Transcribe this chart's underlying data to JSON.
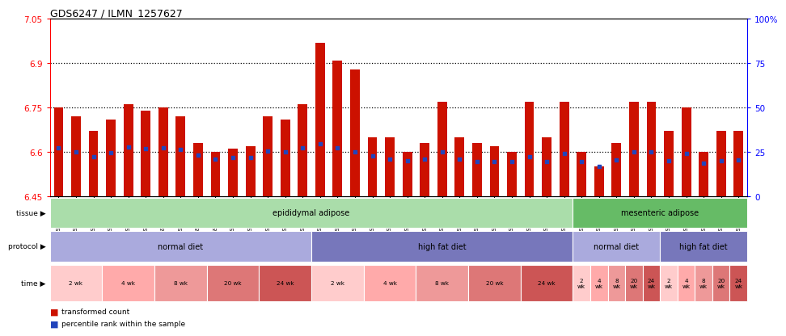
{
  "title": "GDS6247 / ILMN_1257627",
  "samples": [
    "GSM971546",
    "GSM971547",
    "GSM971548",
    "GSM971549",
    "GSM971550",
    "GSM971551",
    "GSM971552",
    "GSM971553",
    "GSM971554",
    "GSM971555",
    "GSM971556",
    "GSM971557",
    "GSM971558",
    "GSM971559",
    "GSM971560",
    "GSM971561",
    "GSM971562",
    "GSM971563",
    "GSM971564",
    "GSM971565",
    "GSM971566",
    "GSM971567",
    "GSM971568",
    "GSM971569",
    "GSM971570",
    "GSM971571",
    "GSM971572",
    "GSM971573",
    "GSM971574",
    "GSM971575",
    "GSM971576",
    "GSM971577",
    "GSM971578",
    "GSM971579",
    "GSM971580",
    "GSM971581",
    "GSM971582",
    "GSM971583",
    "GSM971584",
    "GSM971585"
  ],
  "transformed_count": [
    6.75,
    6.72,
    6.67,
    6.71,
    6.76,
    6.74,
    6.75,
    6.72,
    6.63,
    6.6,
    6.61,
    6.62,
    6.72,
    6.71,
    6.76,
    6.97,
    6.91,
    6.88,
    6.65,
    6.65,
    6.6,
    6.63,
    6.77,
    6.65,
    6.63,
    6.62,
    6.6,
    6.77,
    6.65,
    6.77,
    6.6,
    6.55,
    6.63,
    6.77,
    6.77,
    6.67,
    6.75,
    6.6,
    6.67,
    6.67
  ],
  "blue_dot_y": [
    6.615,
    6.6,
    6.584,
    6.596,
    6.617,
    6.612,
    6.615,
    6.609,
    6.589,
    6.576,
    6.58,
    6.58,
    6.604,
    6.6,
    6.614,
    6.628,
    6.614,
    6.601,
    6.586,
    6.576,
    6.571,
    6.576,
    6.6,
    6.576,
    6.566,
    6.566,
    6.566,
    6.583,
    6.568,
    6.594,
    6.566,
    6.552,
    6.572,
    6.6,
    6.6,
    6.571,
    6.594,
    6.561,
    6.571,
    6.573
  ],
  "ymin": 6.45,
  "ymax": 7.05,
  "yticks": [
    6.45,
    6.6,
    6.75,
    6.9,
    7.05
  ],
  "ytick_labels": [
    "6.45",
    "6.6",
    "6.75",
    "6.9",
    "7.05"
  ],
  "hlines": [
    6.6,
    6.75,
    6.9
  ],
  "y2ticks": [
    0.0,
    0.25,
    0.5,
    0.75,
    1.0
  ],
  "y2tick_labels": [
    "0",
    "25",
    "50",
    "75",
    "100%"
  ],
  "bar_color": "#CC1100",
  "dot_color": "#2244BB",
  "bg_color": "#FFFFFF",
  "tissue_groups": [
    {
      "label": "epididymal adipose",
      "start": 0,
      "end": 29,
      "color": "#AADDAA"
    },
    {
      "label": "mesenteric adipose",
      "start": 30,
      "end": 39,
      "color": "#66BB66"
    }
  ],
  "protocol_groups": [
    {
      "label": "normal diet",
      "start": 0,
      "end": 14,
      "color": "#AAAADD"
    },
    {
      "label": "high fat diet",
      "start": 15,
      "end": 29,
      "color": "#7777BB"
    },
    {
      "label": "normal diet",
      "start": 30,
      "end": 34,
      "color": "#AAAADD"
    },
    {
      "label": "high fat diet",
      "start": 35,
      "end": 39,
      "color": "#7777BB"
    }
  ],
  "time_groups": [
    {
      "label": "2 wk",
      "start": 0,
      "end": 2,
      "color": "#FFCCCC"
    },
    {
      "label": "4 wk",
      "start": 3,
      "end": 5,
      "color": "#FFAAAA"
    },
    {
      "label": "8 wk",
      "start": 6,
      "end": 8,
      "color": "#EE9999"
    },
    {
      "label": "20 wk",
      "start": 9,
      "end": 11,
      "color": "#DD7777"
    },
    {
      "label": "24 wk",
      "start": 12,
      "end": 14,
      "color": "#CC5555"
    },
    {
      "label": "2 wk",
      "start": 15,
      "end": 17,
      "color": "#FFCCCC"
    },
    {
      "label": "4 wk",
      "start": 18,
      "end": 20,
      "color": "#FFAAAA"
    },
    {
      "label": "8 wk",
      "start": 21,
      "end": 23,
      "color": "#EE9999"
    },
    {
      "label": "20 wk",
      "start": 24,
      "end": 26,
      "color": "#DD7777"
    },
    {
      "label": "24 wk",
      "start": 27,
      "end": 29,
      "color": "#CC5555"
    },
    {
      "label": "2\nwk",
      "start": 30,
      "end": 30,
      "color": "#FFCCCC"
    },
    {
      "label": "4\nwk",
      "start": 31,
      "end": 31,
      "color": "#FFAAAA"
    },
    {
      "label": "8\nwk",
      "start": 32,
      "end": 32,
      "color": "#EE9999"
    },
    {
      "label": "20\nwk",
      "start": 33,
      "end": 33,
      "color": "#DD7777"
    },
    {
      "label": "24\nwk",
      "start": 34,
      "end": 34,
      "color": "#CC5555"
    },
    {
      "label": "2\nwk",
      "start": 35,
      "end": 35,
      "color": "#FFCCCC"
    },
    {
      "label": "4\nwk",
      "start": 36,
      "end": 36,
      "color": "#FFAAAA"
    },
    {
      "label": "8\nwk",
      "start": 37,
      "end": 37,
      "color": "#EE9999"
    },
    {
      "label": "20\nwk",
      "start": 38,
      "end": 38,
      "color": "#DD7777"
    },
    {
      "label": "24\nwk",
      "start": 39,
      "end": 39,
      "color": "#CC5555"
    }
  ],
  "legend_red_label": "transformed count",
  "legend_blue_label": "percentile rank within the sample",
  "bar_width": 0.55
}
